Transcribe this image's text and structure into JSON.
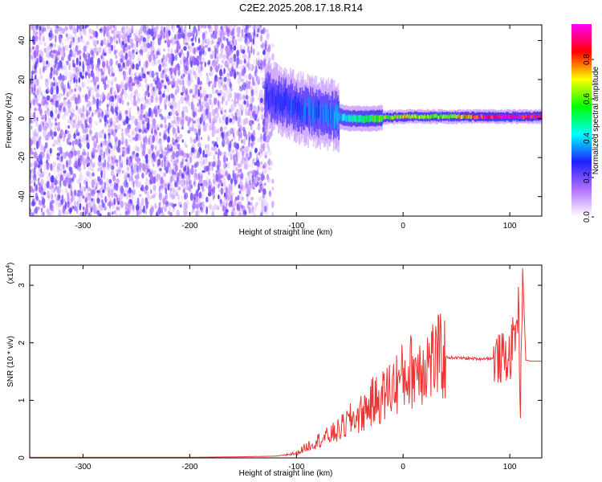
{
  "title": "C2E2.2025.208.17.18.R14",
  "chart_data": [
    {
      "type": "heatmap",
      "xlabel": "Height of straight line (km)",
      "ylabel": "Frequency (Hz)",
      "xlim": [
        -350,
        130
      ],
      "ylim": [
        -50,
        48
      ],
      "x_ticks": [
        -300,
        -200,
        -100,
        0,
        100
      ],
      "y_ticks": [
        -40,
        -20,
        0,
        20,
        40
      ],
      "colorbar": {
        "label": "Normalized spectral amplitude",
        "range": [
          0,
          0.98
        ],
        "ticks": [
          0.0,
          0.2,
          0.4,
          0.6,
          0.8
        ],
        "colors": [
          "#ffffff",
          "#b070ff",
          "#2020ff",
          "#00ffff",
          "#00ff00",
          "#ffff00",
          "#ff0000",
          "#ff00ff"
        ]
      },
      "noise_region_x": [
        -350,
        -128
      ],
      "ridge": [
        {
          "x": -130,
          "y": 12,
          "amp": 0.25
        },
        {
          "x": -110,
          "y": 8,
          "amp": 0.3
        },
        {
          "x": -90,
          "y": 4,
          "amp": 0.32
        },
        {
          "x": -70,
          "y": 2,
          "amp": 0.35
        },
        {
          "x": -50,
          "y": 0,
          "amp": 0.45
        },
        {
          "x": -30,
          "y": 0,
          "amp": 0.55
        },
        {
          "x": 0,
          "y": 1,
          "amp": 0.7
        },
        {
          "x": 30,
          "y": 1,
          "amp": 0.6
        },
        {
          "x": 60,
          "y": 1,
          "amp": 0.75
        },
        {
          "x": 90,
          "y": 1,
          "amp": 0.95
        },
        {
          "x": 130,
          "y": 1,
          "amp": 0.9
        }
      ]
    },
    {
      "type": "line",
      "xlabel": "Height of straight line (km)",
      "ylabel": "SNR (10 * v/v)",
      "y_multiplier": "(x10",
      "y_multiplier_exp": "4",
      "y_multiplier_close": ")",
      "xlim": [
        -350,
        130
      ],
      "ylim": [
        0,
        3.35
      ],
      "x_ticks": [
        -300,
        -200,
        -100,
        0,
        100
      ],
      "y_ticks": [
        0,
        1,
        2,
        3
      ],
      "color": "#ee3333",
      "series": [
        {
          "x": [
            -350,
            -300,
            -250,
            -200,
            -150,
            -120,
            -100,
            -90,
            -80,
            -70,
            -60,
            -50,
            -40,
            -30,
            -20,
            -10,
            0,
            10,
            20,
            30,
            40,
            50,
            60,
            70,
            80,
            90,
            100,
            105,
            108,
            110,
            112,
            115,
            120,
            130
          ],
          "values": [
            0.01,
            0.01,
            0.01,
            0.01,
            0.02,
            0.03,
            0.08,
            0.2,
            0.3,
            0.38,
            0.48,
            0.65,
            0.75,
            0.95,
            1.05,
            1.25,
            1.4,
            1.55,
            1.65,
            1.72,
            1.75,
            1.74,
            1.73,
            1.72,
            1.73,
            1.72,
            1.75,
            2.2,
            2.6,
            1.0,
            3.3,
            1.7,
            1.68,
            1.68
          ]
        }
      ]
    }
  ]
}
